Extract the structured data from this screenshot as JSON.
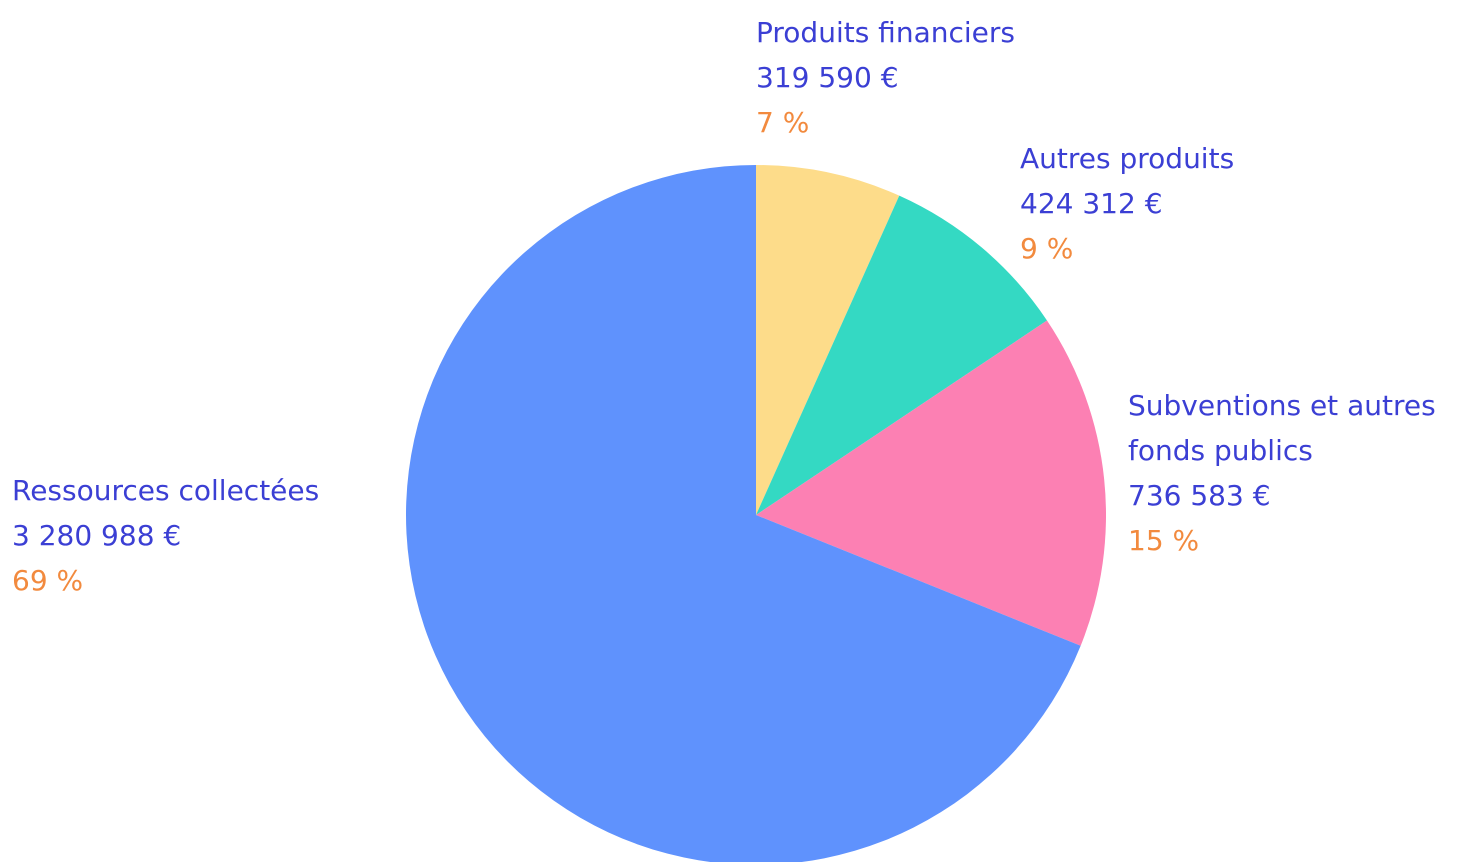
{
  "chart_data": {
    "type": "pie",
    "categories": [
      "Produits financiers",
      "Autres produits",
      "Subventions et autres fonds publics",
      "Ressources collectées"
    ],
    "values": [
      319590,
      424312,
      736583,
      3280988
    ],
    "value_labels": [
      "319 590 €",
      "424 312 €",
      "736 583 €",
      "3 280 988 €"
    ],
    "percentage_labels": [
      "7 %",
      "9 %",
      "15 %",
      "69 %"
    ],
    "colors": [
      "#fddc8a",
      "#34d9c3",
      "#fc80b3",
      "#5f92fd"
    ]
  }
}
